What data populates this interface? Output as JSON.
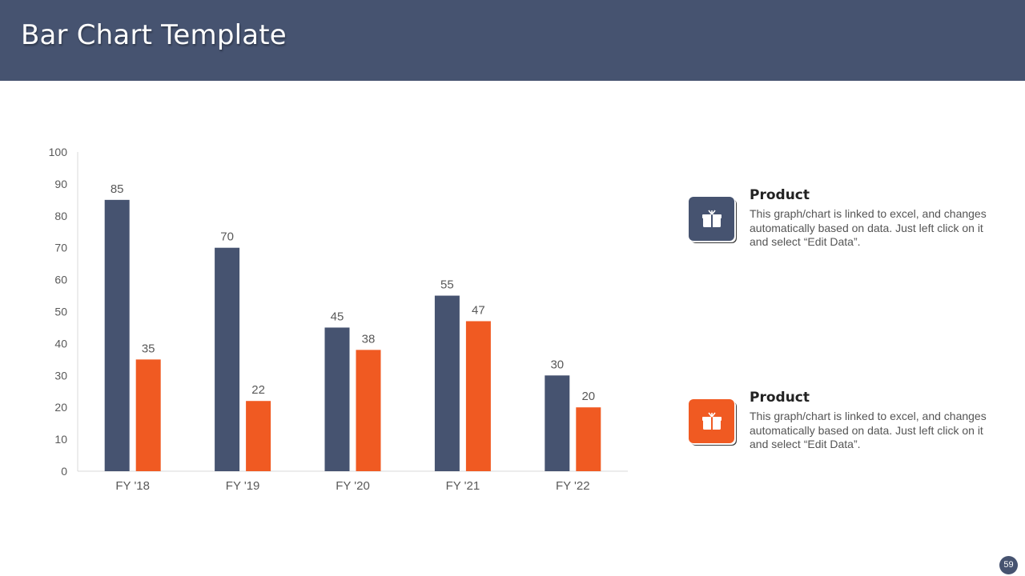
{
  "header": {
    "title": "Bar Chart Template"
  },
  "colors": {
    "header_bg": "#465370",
    "series1": "#465370",
    "series2": "#F05A22"
  },
  "chart_data": {
    "type": "bar",
    "title": "",
    "xlabel": "",
    "ylabel": "",
    "ylim": [
      0,
      100
    ],
    "yticks": [
      0,
      10,
      20,
      30,
      40,
      50,
      60,
      70,
      80,
      90,
      100
    ],
    "grid": false,
    "categories": [
      "FY '18",
      "FY '19",
      "FY '20",
      "FY '21",
      "FY '22"
    ],
    "series": [
      {
        "name": "Product",
        "color": "#465370",
        "values": [
          85,
          70,
          45,
          55,
          30
        ]
      },
      {
        "name": "Product",
        "color": "#F05A22",
        "values": [
          35,
          22,
          38,
          47,
          20
        ]
      }
    ]
  },
  "legend": [
    {
      "title": "Product",
      "description": "This graph/chart is linked to excel, and changes automatically based on data. Just left click on it and select “Edit Data”.",
      "icon": "gift-box-icon",
      "color": "#465370"
    },
    {
      "title": "Product",
      "description": "This graph/chart is linked to excel, and changes automatically based on data. Just left click on it and select “Edit Data”.",
      "icon": "gift-box-icon",
      "color": "#F05A22"
    }
  ],
  "page_number": "59"
}
